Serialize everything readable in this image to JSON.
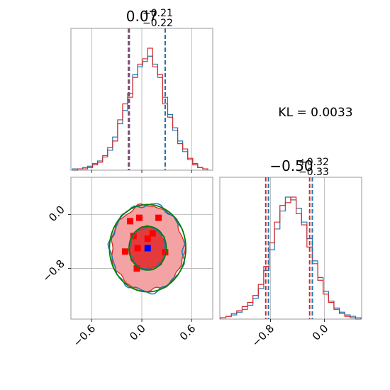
{
  "chart_data": {
    "type": "corner",
    "colors": {
      "blue": "#1f77b4",
      "red": "#d62728",
      "green": "#008000",
      "marker_blue": "#0000ff",
      "marker_red": "#ff0000"
    },
    "annotation": "KL = 0.0033",
    "params": [
      {
        "median": "0.07",
        "upper": "+0.21",
        "lower": "−0.22",
        "range": [
          -0.85,
          0.85
        ],
        "ticks": [
          -0.6,
          0.0,
          0.6
        ],
        "tick_labels": [
          "−0.6",
          "0.0",
          "0.6"
        ],
        "blue_quantiles": [
          -0.15,
          0.07,
          0.28
        ],
        "red_quantiles": [
          -0.16,
          0.07,
          0.28
        ]
      },
      {
        "median": "−0.50",
        "upper": "+0.32",
        "lower": "−0.33",
        "range": [
          -1.55,
          0.55
        ],
        "ticks": [
          -0.8,
          0.0
        ],
        "tick_labels": [
          "−0.8",
          "0.0"
        ],
        "blue_quantiles": [
          -0.83,
          -0.5,
          -0.18
        ],
        "red_quantiles": [
          -0.87,
          -0.52,
          -0.22
        ]
      }
    ],
    "hist1d_param1": {
      "x": [
        -0.8,
        -0.74,
        -0.68,
        -0.62,
        -0.56,
        -0.5,
        -0.44,
        -0.38,
        -0.32,
        -0.26,
        -0.2,
        -0.14,
        -0.08,
        -0.02,
        0.04,
        0.1,
        0.16,
        0.22,
        0.28,
        0.34,
        0.4,
        0.46,
        0.52,
        0.58,
        0.64,
        0.7,
        0.76
      ],
      "blue": [
        1,
        1,
        2,
        3,
        5,
        7,
        11,
        15,
        25,
        35,
        45,
        58,
        72,
        78,
        82,
        86,
        80,
        70,
        55,
        42,
        30,
        22,
        14,
        8,
        5,
        2,
        1
      ],
      "red": [
        0,
        1,
        1,
        2,
        4,
        6,
        10,
        17,
        22,
        38,
        50,
        55,
        70,
        80,
        84,
        92,
        78,
        72,
        50,
        40,
        32,
        20,
        16,
        9,
        4,
        2,
        1
      ]
    },
    "hist1d_param2": {
      "x": [
        -1.5,
        -1.42,
        -1.34,
        -1.26,
        -1.18,
        -1.1,
        -1.02,
        -0.94,
        -0.86,
        -0.78,
        -0.7,
        -0.62,
        -0.54,
        -0.46,
        -0.38,
        -0.3,
        -0.22,
        -0.14,
        -0.06,
        0.02,
        0.1,
        0.18,
        0.26,
        0.34,
        0.42,
        0.5
      ],
      "blue": [
        1,
        2,
        3,
        5,
        7,
        10,
        15,
        22,
        35,
        50,
        65,
        78,
        88,
        86,
        80,
        70,
        58,
        42,
        30,
        20,
        13,
        8,
        5,
        3,
        2,
        1
      ],
      "red": [
        1,
        2,
        4,
        6,
        9,
        12,
        17,
        25,
        38,
        55,
        70,
        82,
        84,
        88,
        76,
        68,
        52,
        40,
        28,
        18,
        12,
        7,
        4,
        2,
        1,
        0
      ]
    },
    "hist2d": {
      "levels": [
        0.39,
        0.86
      ],
      "mean": [
        0.07,
        -0.5
      ],
      "sigma": [
        0.22,
        0.32
      ],
      "blue_sample": [
        0.07,
        -0.5
      ],
      "red_bins": [
        [
          -0.14,
          -0.1
        ],
        [
          -0.03,
          -0.05
        ],
        [
          0.2,
          -0.05
        ],
        [
          0.13,
          -0.28
        ],
        [
          -0.2,
          -0.55
        ],
        [
          -0.05,
          -0.5
        ],
        [
          0.28,
          -0.56
        ],
        [
          -0.06,
          -0.8
        ],
        [
          0.07,
          -0.36
        ],
        [
          -0.1,
          -0.32
        ]
      ]
    }
  }
}
